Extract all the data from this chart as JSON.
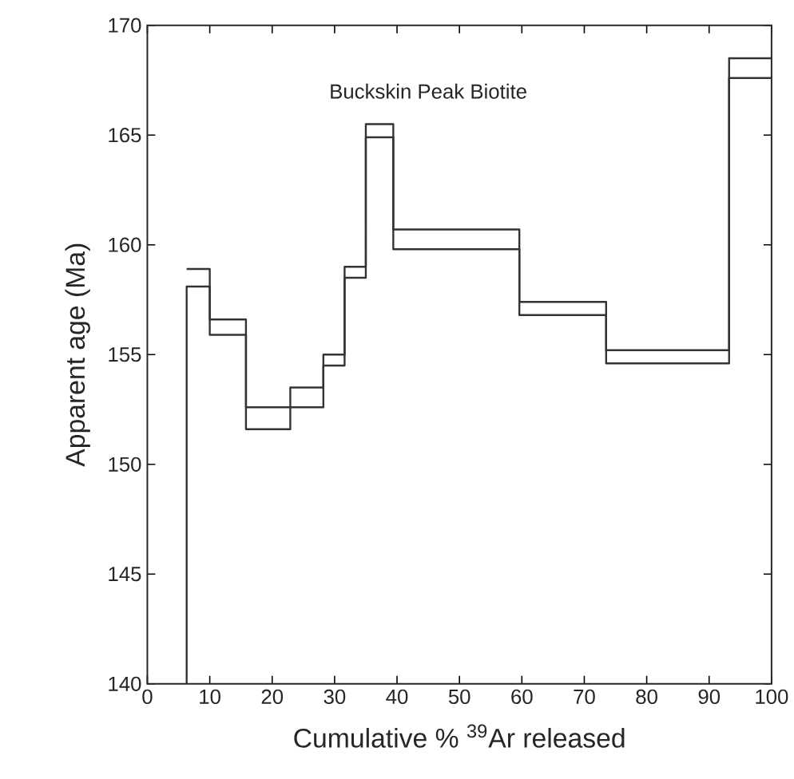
{
  "chart_data": {
    "type": "step",
    "annotations": [
      "Buckskin Peak Biotite"
    ],
    "xlabel": "Cumulative % $^{39}$Ar released",
    "ylabel": "Apparent age (Ma)",
    "xlim": [
      0,
      100
    ],
    "ylim": [
      140,
      170
    ],
    "xticks": [
      0,
      10,
      20,
      30,
      40,
      50,
      60,
      70,
      80,
      90,
      100
    ],
    "yticks": [
      140,
      145,
      150,
      155,
      160,
      165,
      170
    ],
    "line_style": "solid",
    "series": [
      {
        "color": "#333333",
        "x": [
          6.3,
          10,
          15.8,
          22.9,
          28.2,
          31.6,
          35,
          39.4,
          59.6,
          73.5,
          93.2,
          100
        ],
        "values": [
          158.9,
          156.6,
          152.6,
          153.5,
          155.0,
          159.0,
          165.5,
          160.7,
          157.4,
          155.2,
          168.5,
          168.5
        ]
      },
      {
        "color": "#333333",
        "x": [
          6.3,
          6.3,
          10,
          15.8,
          22.9,
          28.2,
          31.6,
          35,
          39.4,
          59.6,
          73.5,
          93.2,
          100
        ],
        "values": [
          140,
          158.1,
          155.9,
          151.6,
          152.6,
          154.5,
          158.5,
          164.9,
          159.8,
          156.8,
          154.6,
          167.6,
          167.6
        ]
      }
    ]
  }
}
